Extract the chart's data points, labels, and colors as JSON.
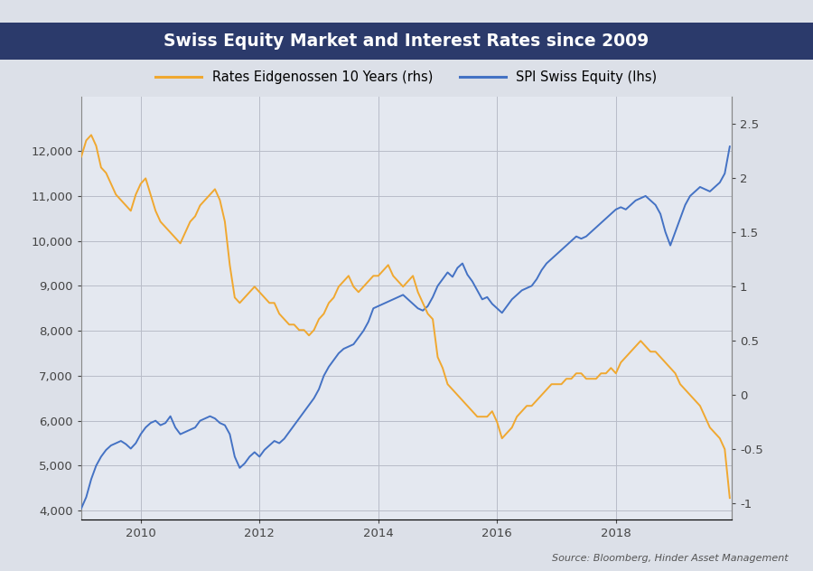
{
  "title": "Swiss Equity Market and Interest Rates since 2009",
  "title_bg_color": "#2b3a6b",
  "title_text_color": "#ffffff",
  "bg_color": "#dce0e8",
  "plot_bg_color": "#e4e8f0",
  "spi_color": "#4472c4",
  "rates_color": "#f0a830",
  "spi_label": "SPI Swiss Equity (lhs)",
  "rates_label": "Rates Eidgenossen 10 Years (rhs)",
  "source_text": "Source: Bloomberg, Hinder Asset Management",
  "ylim_left": [
    3800,
    13200
  ],
  "ylim_right": [
    -1.15,
    2.75
  ],
  "yticks_left": [
    4000,
    5000,
    6000,
    7000,
    8000,
    9000,
    10000,
    11000,
    12000
  ],
  "yticks_right": [
    -1,
    -0.5,
    0,
    0.5,
    1,
    1.5,
    2,
    2.5
  ],
  "spi_x": [
    2009.0,
    2009.083,
    2009.167,
    2009.25,
    2009.333,
    2009.417,
    2009.5,
    2009.583,
    2009.667,
    2009.75,
    2009.833,
    2009.917,
    2010.0,
    2010.083,
    2010.167,
    2010.25,
    2010.333,
    2010.417,
    2010.5,
    2010.583,
    2010.667,
    2010.75,
    2010.833,
    2010.917,
    2011.0,
    2011.083,
    2011.167,
    2011.25,
    2011.333,
    2011.417,
    2011.5,
    2011.583,
    2011.667,
    2011.75,
    2011.833,
    2011.917,
    2012.0,
    2012.083,
    2012.167,
    2012.25,
    2012.333,
    2012.417,
    2012.5,
    2012.583,
    2012.667,
    2012.75,
    2012.833,
    2012.917,
    2013.0,
    2013.083,
    2013.167,
    2013.25,
    2013.333,
    2013.417,
    2013.5,
    2013.583,
    2013.667,
    2013.75,
    2013.833,
    2013.917,
    2014.0,
    2014.083,
    2014.167,
    2014.25,
    2014.333,
    2014.417,
    2014.5,
    2014.583,
    2014.667,
    2014.75,
    2014.833,
    2014.917,
    2015.0,
    2015.083,
    2015.167,
    2015.25,
    2015.333,
    2015.417,
    2015.5,
    2015.583,
    2015.667,
    2015.75,
    2015.833,
    2015.917,
    2016.0,
    2016.083,
    2016.167,
    2016.25,
    2016.333,
    2016.417,
    2016.5,
    2016.583,
    2016.667,
    2016.75,
    2016.833,
    2016.917,
    2017.0,
    2017.083,
    2017.167,
    2017.25,
    2017.333,
    2017.417,
    2017.5,
    2017.583,
    2017.667,
    2017.75,
    2017.833,
    2017.917,
    2018.0,
    2018.083,
    2018.167,
    2018.25,
    2018.333,
    2018.417,
    2018.5,
    2018.583,
    2018.667,
    2018.75,
    2018.833,
    2018.917,
    2019.0,
    2019.083,
    2019.167,
    2019.25,
    2019.333,
    2019.417,
    2019.5,
    2019.583,
    2019.667,
    2019.75,
    2019.833,
    2019.917
  ],
  "spi_y": [
    4050,
    4300,
    4700,
    5000,
    5200,
    5350,
    5450,
    5500,
    5550,
    5480,
    5380,
    5500,
    5700,
    5850,
    5950,
    6000,
    5900,
    5950,
    6100,
    5850,
    5700,
    5750,
    5800,
    5850,
    6000,
    6050,
    6100,
    6050,
    5950,
    5900,
    5700,
    5200,
    4950,
    5050,
    5200,
    5300,
    5200,
    5350,
    5450,
    5550,
    5500,
    5600,
    5750,
    5900,
    6050,
    6200,
    6350,
    6500,
    6700,
    7000,
    7200,
    7350,
    7500,
    7600,
    7650,
    7700,
    7850,
    8000,
    8200,
    8500,
    8550,
    8600,
    8650,
    8700,
    8750,
    8800,
    8700,
    8600,
    8500,
    8450,
    8550,
    8750,
    9000,
    9150,
    9300,
    9200,
    9400,
    9500,
    9250,
    9100,
    8900,
    8700,
    8750,
    8600,
    8500,
    8400,
    8550,
    8700,
    8800,
    8900,
    8950,
    9000,
    9150,
    9350,
    9500,
    9600,
    9700,
    9800,
    9900,
    10000,
    10100,
    10050,
    10100,
    10200,
    10300,
    10400,
    10500,
    10600,
    10700,
    10750,
    10700,
    10800,
    10900,
    10950,
    11000,
    10900,
    10800,
    10600,
    10200,
    9900,
    10200,
    10500,
    10800,
    11000,
    11100,
    11200,
    11150,
    11100,
    11200,
    11300,
    11500,
    12100
  ],
  "rates_x": [
    2009.0,
    2009.083,
    2009.167,
    2009.25,
    2009.333,
    2009.417,
    2009.5,
    2009.583,
    2009.667,
    2009.75,
    2009.833,
    2009.917,
    2010.0,
    2010.083,
    2010.167,
    2010.25,
    2010.333,
    2010.417,
    2010.5,
    2010.583,
    2010.667,
    2010.75,
    2010.833,
    2010.917,
    2011.0,
    2011.083,
    2011.167,
    2011.25,
    2011.333,
    2011.417,
    2011.5,
    2011.583,
    2011.667,
    2011.75,
    2011.833,
    2011.917,
    2012.0,
    2012.083,
    2012.167,
    2012.25,
    2012.333,
    2012.417,
    2012.5,
    2012.583,
    2012.667,
    2012.75,
    2012.833,
    2012.917,
    2013.0,
    2013.083,
    2013.167,
    2013.25,
    2013.333,
    2013.417,
    2013.5,
    2013.583,
    2013.667,
    2013.75,
    2013.833,
    2013.917,
    2014.0,
    2014.083,
    2014.167,
    2014.25,
    2014.333,
    2014.417,
    2014.5,
    2014.583,
    2014.667,
    2014.75,
    2014.833,
    2014.917,
    2015.0,
    2015.083,
    2015.167,
    2015.25,
    2015.333,
    2015.417,
    2015.5,
    2015.583,
    2015.667,
    2015.75,
    2015.833,
    2015.917,
    2016.0,
    2016.083,
    2016.167,
    2016.25,
    2016.333,
    2016.417,
    2016.5,
    2016.583,
    2016.667,
    2016.75,
    2016.833,
    2016.917,
    2017.0,
    2017.083,
    2017.167,
    2017.25,
    2017.333,
    2017.417,
    2017.5,
    2017.583,
    2017.667,
    2017.75,
    2017.833,
    2017.917,
    2018.0,
    2018.083,
    2018.167,
    2018.25,
    2018.333,
    2018.417,
    2018.5,
    2018.583,
    2018.667,
    2018.75,
    2018.833,
    2018.917,
    2019.0,
    2019.083,
    2019.167,
    2019.25,
    2019.333,
    2019.417,
    2019.5,
    2019.583,
    2019.667,
    2019.75,
    2019.833,
    2019.917
  ],
  "rates_y": [
    2.2,
    2.35,
    2.4,
    2.3,
    2.1,
    2.05,
    1.95,
    1.85,
    1.8,
    1.75,
    1.7,
    1.85,
    1.95,
    2.0,
    1.85,
    1.7,
    1.6,
    1.55,
    1.5,
    1.45,
    1.4,
    1.5,
    1.6,
    1.65,
    1.75,
    1.8,
    1.85,
    1.9,
    1.8,
    1.6,
    1.2,
    0.9,
    0.85,
    0.9,
    0.95,
    1.0,
    0.95,
    0.9,
    0.85,
    0.85,
    0.75,
    0.7,
    0.65,
    0.65,
    0.6,
    0.6,
    0.55,
    0.6,
    0.7,
    0.75,
    0.85,
    0.9,
    1.0,
    1.05,
    1.1,
    1.0,
    0.95,
    1.0,
    1.05,
    1.1,
    1.1,
    1.15,
    1.2,
    1.1,
    1.05,
    1.0,
    1.05,
    1.1,
    0.95,
    0.85,
    0.75,
    0.7,
    0.35,
    0.25,
    0.1,
    0.05,
    0.0,
    -0.05,
    -0.1,
    -0.15,
    -0.2,
    -0.2,
    -0.2,
    -0.15,
    -0.25,
    -0.4,
    -0.35,
    -0.3,
    -0.2,
    -0.15,
    -0.1,
    -0.1,
    -0.05,
    0.0,
    0.05,
    0.1,
    0.1,
    0.1,
    0.15,
    0.15,
    0.2,
    0.2,
    0.15,
    0.15,
    0.15,
    0.2,
    0.2,
    0.25,
    0.2,
    0.3,
    0.35,
    0.4,
    0.45,
    0.5,
    0.45,
    0.4,
    0.4,
    0.35,
    0.3,
    0.25,
    0.2,
    0.1,
    0.05,
    0.0,
    -0.05,
    -0.1,
    -0.2,
    -0.3,
    -0.35,
    -0.4,
    -0.5,
    -0.95
  ]
}
